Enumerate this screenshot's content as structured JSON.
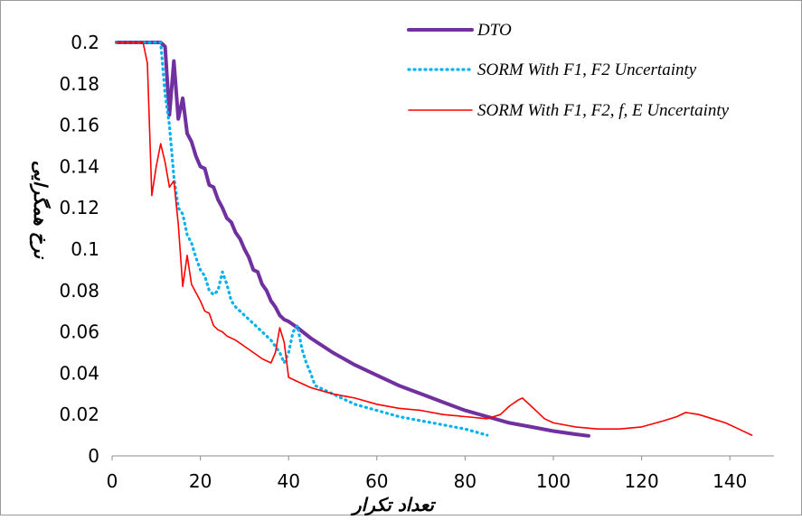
{
  "chart_data": {
    "type": "line",
    "xlabel": "تعداد تکرار",
    "ylabel": "نرخ همگرایی",
    "xlim": [
      0,
      150
    ],
    "ylim": [
      0,
      0.2
    ],
    "x_ticks": [
      0,
      20,
      40,
      60,
      80,
      100,
      120,
      140
    ],
    "y_ticks": [
      "0",
      "0.02",
      "0.04",
      "0.06",
      "0.08",
      "0.1",
      "0.12",
      "0.14",
      "0.16",
      "0.18",
      "0.2"
    ],
    "grid": false,
    "legend_position": "top-right",
    "series": [
      {
        "name": "DTO",
        "color": "#7030A0",
        "style": "solid-thick",
        "points": [
          [
            1,
            0.2
          ],
          [
            11,
            0.2
          ],
          [
            12,
            0.198
          ],
          [
            13,
            0.165
          ],
          [
            14,
            0.191
          ],
          [
            15,
            0.163
          ],
          [
            16,
            0.173
          ],
          [
            17,
            0.156
          ],
          [
            18,
            0.152
          ],
          [
            19,
            0.145
          ],
          [
            20,
            0.14
          ],
          [
            21,
            0.139
          ],
          [
            22,
            0.131
          ],
          [
            23,
            0.13
          ],
          [
            24,
            0.124
          ],
          [
            25,
            0.12
          ],
          [
            26,
            0.115
          ],
          [
            27,
            0.113
          ],
          [
            28,
            0.108
          ],
          [
            29,
            0.105
          ],
          [
            30,
            0.1
          ],
          [
            31,
            0.096
          ],
          [
            32,
            0.09
          ],
          [
            33,
            0.089
          ],
          [
            34,
            0.083
          ],
          [
            35,
            0.08
          ],
          [
            36,
            0.075
          ],
          [
            37,
            0.072
          ],
          [
            38,
            0.068
          ],
          [
            39,
            0.066
          ],
          [
            40,
            0.065
          ],
          [
            42,
            0.062
          ],
          [
            45,
            0.057
          ],
          [
            50,
            0.05
          ],
          [
            55,
            0.044
          ],
          [
            60,
            0.039
          ],
          [
            65,
            0.034
          ],
          [
            70,
            0.03
          ],
          [
            75,
            0.026
          ],
          [
            80,
            0.022
          ],
          [
            85,
            0.019
          ],
          [
            90,
            0.016
          ],
          [
            95,
            0.014
          ],
          [
            100,
            0.012
          ],
          [
            105,
            0.0105
          ],
          [
            108,
            0.0097
          ]
        ]
      },
      {
        "name": "SORM With F1, F2 Uncertainty",
        "color": "#00B0F0",
        "style": "dotted",
        "points": [
          [
            1,
            0.2
          ],
          [
            11,
            0.2
          ],
          [
            12,
            0.175
          ],
          [
            13,
            0.16
          ],
          [
            14,
            0.135
          ],
          [
            15,
            0.12
          ],
          [
            16,
            0.117
          ],
          [
            17,
            0.107
          ],
          [
            18,
            0.103
          ],
          [
            19,
            0.096
          ],
          [
            20,
            0.09
          ],
          [
            21,
            0.087
          ],
          [
            22,
            0.08
          ],
          [
            23,
            0.078
          ],
          [
            24,
            0.08
          ],
          [
            25,
            0.089
          ],
          [
            26,
            0.083
          ],
          [
            27,
            0.075
          ],
          [
            28,
            0.072
          ],
          [
            30,
            0.068
          ],
          [
            32,
            0.064
          ],
          [
            34,
            0.06
          ],
          [
            36,
            0.056
          ],
          [
            38,
            0.05
          ],
          [
            39,
            0.045
          ],
          [
            40,
            0.05
          ],
          [
            41,
            0.06
          ],
          [
            42,
            0.063
          ],
          [
            43,
            0.052
          ],
          [
            44,
            0.045
          ],
          [
            45,
            0.04
          ],
          [
            46,
            0.034
          ],
          [
            48,
            0.032
          ],
          [
            50,
            0.03
          ],
          [
            55,
            0.025
          ],
          [
            60,
            0.022
          ],
          [
            65,
            0.019
          ],
          [
            70,
            0.017
          ],
          [
            75,
            0.015
          ],
          [
            80,
            0.013
          ],
          [
            85,
            0.01
          ]
        ]
      },
      {
        "name": "SORM With F1, F2, f, E Uncertainty",
        "color": "#FF0000",
        "style": "solid-thin",
        "points": [
          [
            1,
            0.2
          ],
          [
            7,
            0.2
          ],
          [
            8,
            0.19
          ],
          [
            9,
            0.126
          ],
          [
            10,
            0.14
          ],
          [
            11,
            0.151
          ],
          [
            12,
            0.142
          ],
          [
            13,
            0.13
          ],
          [
            14,
            0.133
          ],
          [
            15,
            0.112
          ],
          [
            16,
            0.082
          ],
          [
            17,
            0.097
          ],
          [
            18,
            0.083
          ],
          [
            19,
            0.079
          ],
          [
            20,
            0.075
          ],
          [
            21,
            0.07
          ],
          [
            22,
            0.069
          ],
          [
            23,
            0.063
          ],
          [
            24,
            0.061
          ],
          [
            25,
            0.06
          ],
          [
            26,
            0.058
          ],
          [
            28,
            0.056
          ],
          [
            30,
            0.053
          ],
          [
            32,
            0.05
          ],
          [
            34,
            0.047
          ],
          [
            36,
            0.045
          ],
          [
            37,
            0.05
          ],
          [
            38,
            0.062
          ],
          [
            39,
            0.055
          ],
          [
            40,
            0.038
          ],
          [
            42,
            0.036
          ],
          [
            45,
            0.033
          ],
          [
            50,
            0.03
          ],
          [
            55,
            0.028
          ],
          [
            60,
            0.025
          ],
          [
            65,
            0.023
          ],
          [
            70,
            0.022
          ],
          [
            75,
            0.02
          ],
          [
            80,
            0.019
          ],
          [
            85,
            0.018
          ],
          [
            88,
            0.02
          ],
          [
            90,
            0.024
          ],
          [
            92,
            0.027
          ],
          [
            93,
            0.028
          ],
          [
            95,
            0.024
          ],
          [
            98,
            0.018
          ],
          [
            100,
            0.016
          ],
          [
            105,
            0.014
          ],
          [
            110,
            0.013
          ],
          [
            115,
            0.013
          ],
          [
            120,
            0.014
          ],
          [
            125,
            0.017
          ],
          [
            128,
            0.019
          ],
          [
            130,
            0.021
          ],
          [
            133,
            0.02
          ],
          [
            136,
            0.018
          ],
          [
            139,
            0.016
          ],
          [
            142,
            0.013
          ],
          [
            145,
            0.01
          ]
        ]
      }
    ]
  }
}
